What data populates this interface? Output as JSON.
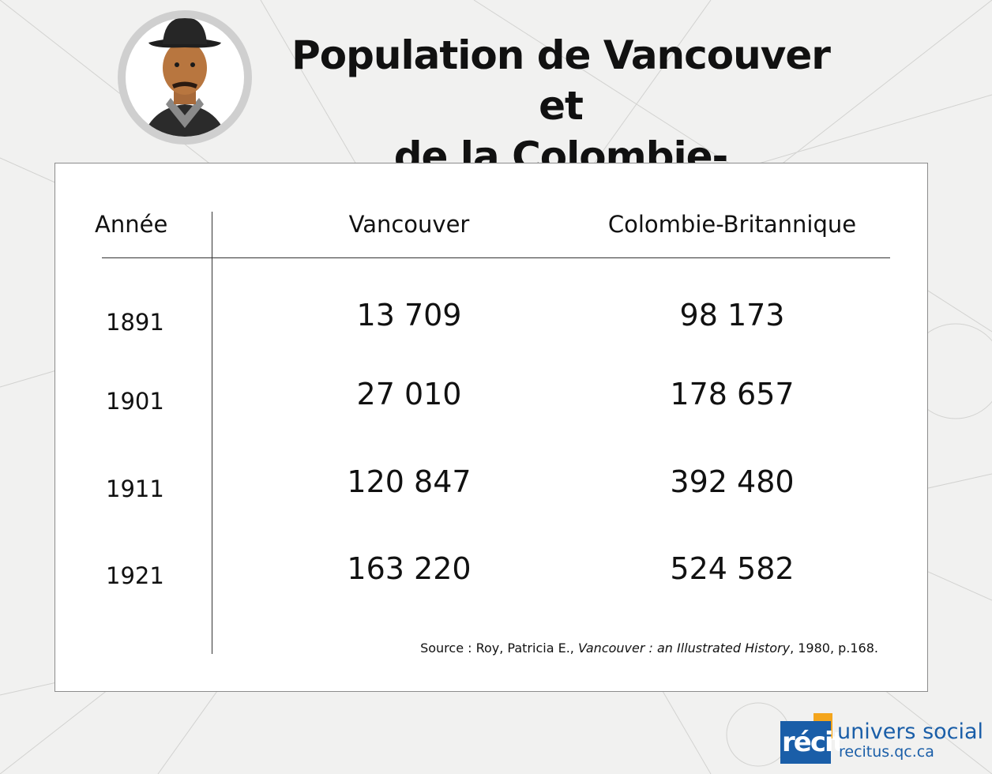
{
  "title_lines": [
    "Population de Vancouver et",
    "de la Colombie-Britannique"
  ],
  "chart_data": {
    "type": "table",
    "title": "Population de Vancouver et de la Colombie-Britannique",
    "columns": [
      "Année",
      "Vancouver",
      "Colombie-Britannique"
    ],
    "rows": [
      {
        "year": "1891",
        "vancouver": "13 709",
        "cb": "98 173"
      },
      {
        "year": "1901",
        "vancouver": "27 010",
        "cb": "178 657"
      },
      {
        "year": "1911",
        "vancouver": "120 847",
        "cb": "392 480"
      },
      {
        "year": "1921",
        "vancouver": "163 220",
        "cb": "524 582"
      }
    ],
    "source": {
      "prefix": "Source : Roy, Patricia E., ",
      "work": "Vancouver : an Illustrated History",
      "suffix": ", 1980, p.168."
    }
  },
  "logo": {
    "brand": "récit",
    "name": "univers social",
    "url": "recitus.qc.ca",
    "colors": {
      "blue": "#1a5ea8",
      "orange": "#f4a51c"
    }
  }
}
